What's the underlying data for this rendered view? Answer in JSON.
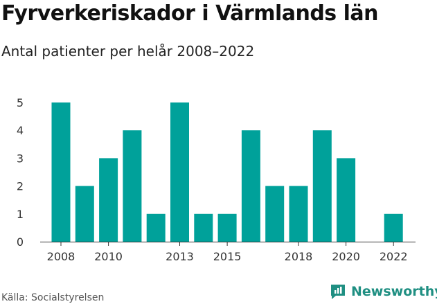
{
  "header": {
    "title": "Fyrverkeriskador i Värmlands län",
    "subtitle": "Antal patienter per helår 2008–2022"
  },
  "footer": {
    "source": "Källa: Socialstyrelsen",
    "brand": "Newsworthy",
    "brand_icon": "chart-bubble-icon"
  },
  "colors": {
    "bar": "#00a19a",
    "axis": "#333333",
    "grid": "#e8e8e8",
    "brand": "#1f8f82"
  },
  "chart_data": {
    "type": "bar",
    "categories": [
      "2008",
      "2009",
      "2010",
      "2011",
      "2012",
      "2013",
      "2014",
      "2015",
      "2016",
      "2017",
      "2018",
      "2019",
      "2020",
      "2021",
      "2022"
    ],
    "values": [
      5,
      2,
      3,
      4,
      1,
      5,
      1,
      1,
      4,
      2,
      2,
      4,
      3,
      0,
      1
    ],
    "x_tick_labels": [
      "2008",
      "2010",
      "2013",
      "2015",
      "2018",
      "2020",
      "2022"
    ],
    "y_ticks": [
      0,
      1,
      2,
      3,
      4,
      5
    ],
    "ylim": [
      0,
      5
    ],
    "title": "Fyrverkeriskador i Värmlands län",
    "subtitle": "Antal patienter per helår 2008–2022",
    "xlabel": "",
    "ylabel": "",
    "grid": false,
    "legend": "none"
  }
}
